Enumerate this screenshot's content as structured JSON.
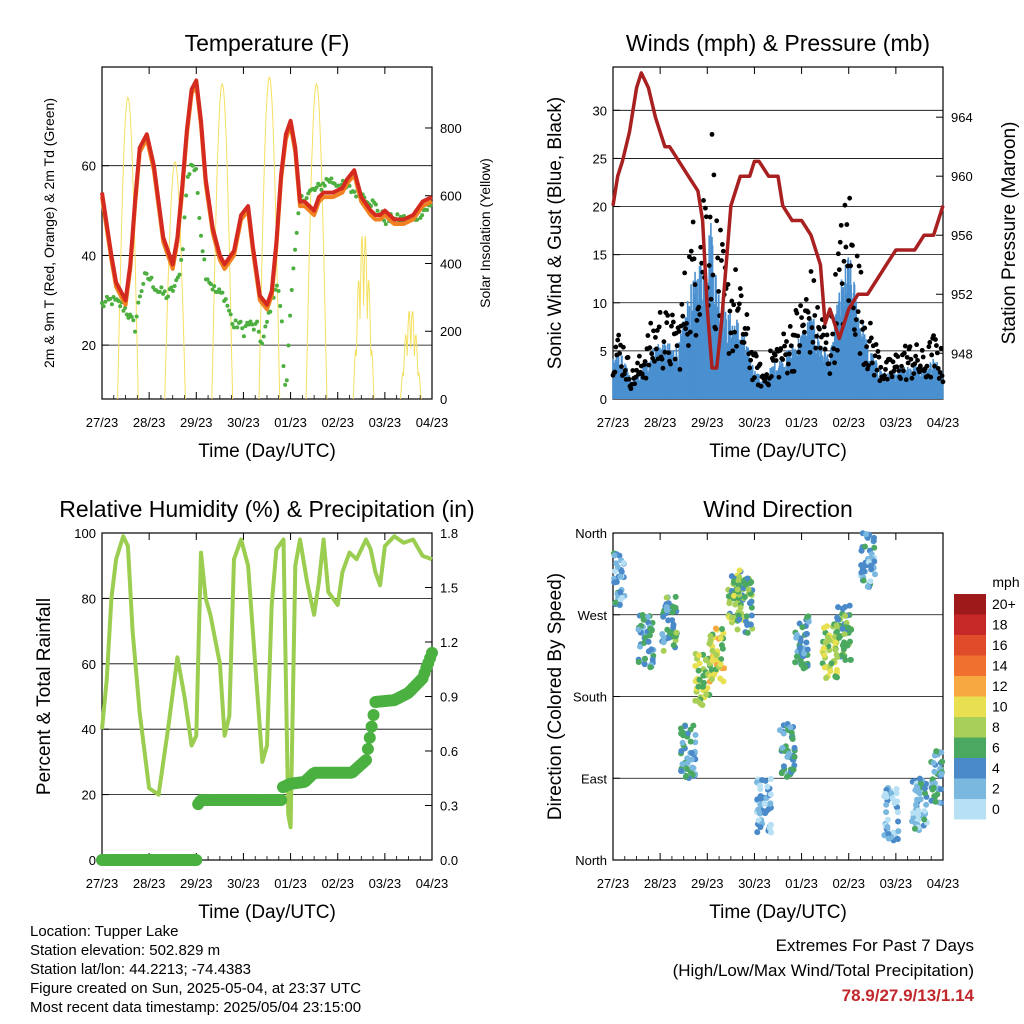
{
  "panels": {
    "temperature": {
      "title": "Temperature (F)",
      "xlabel": "Time (Day/UTC)",
      "ylabel_left": "2m & 9m T (Red, Orange) & 2m Td (Green)",
      "ylabel_right": "Solar Insolation (Yellow)"
    },
    "winds": {
      "title": "Winds (mph) & Pressure (mb)",
      "xlabel": "Time (Day/UTC)",
      "ylabel_left": "Sonic Wind & Gust (Blue, Black)",
      "ylabel_right": "Station Pressure (Maroon)"
    },
    "humidity": {
      "title": "Relative Humidity (%) & Precipitation (in)",
      "xlabel": "Time (Day/UTC)",
      "ylabel_left": "Percent & Total Rainfall"
    },
    "direction": {
      "title": "Wind Direction",
      "xlabel": "Time (Day/UTC)",
      "ylabel_left": "Direction (Colored By Speed)",
      "legend_title": "mph"
    }
  },
  "info": {
    "location": "Location: Tupper Lake",
    "elevation": "Station elevation: 502.829 m",
    "latlon": "Station lat/lon: 44.2213; -74.4383",
    "created": "Figure created on Sun, 2025-05-04, at 23:37 UTC",
    "recent": "Most recent data timestamp: 2025/05/04 23:15:00"
  },
  "extremes": {
    "line1": "Extremes For Past 7 Days",
    "line2": "(High/Low/Max Wind/Total Precipitation)",
    "values": "78.9/27.9/13/1.14"
  },
  "chart_data": [
    {
      "type": "line",
      "title": "Temperature (F)",
      "xlabel": "Time (Day/UTC)",
      "ylabel": "2m & 9m T (Red, Orange) & 2m Td (Green)",
      "y2label": "Solar Insolation (Yellow)",
      "x_ticks": [
        "27/23",
        "28/23",
        "29/23",
        "30/23",
        "01/23",
        "02/23",
        "03/23",
        "04/23"
      ],
      "y_ticks": [
        20,
        40,
        60
      ],
      "y2_ticks": [
        0,
        200,
        400,
        600,
        800
      ],
      "ylim": [
        8,
        82
      ],
      "y2lim": [
        0,
        980
      ],
      "colors": {
        "temp2m": "#d42a20",
        "temp9m": "#f08020",
        "dewpoint": "#4daf40",
        "solar": "#f5e060"
      },
      "series": [
        {
          "name": "2m T",
          "x": [
            0,
            0.1,
            0.2,
            0.3,
            0.5,
            0.6,
            0.7,
            0.8,
            0.95,
            1.1,
            1.3,
            1.5,
            1.6,
            1.7,
            1.8,
            1.9,
            2.0,
            2.1,
            2.2,
            2.35,
            2.5,
            2.6,
            2.8,
            2.95,
            3.1,
            3.2,
            3.35,
            3.5,
            3.6,
            3.7,
            3.8,
            3.9,
            4.0,
            4.1,
            4.2,
            4.3,
            4.5,
            4.6,
            4.7,
            4.9,
            5.1,
            5.2,
            5.35,
            5.5,
            5.7,
            5.8,
            5.9,
            6.0,
            6.2,
            6.4,
            6.6,
            6.8,
            7.0
          ],
          "y": [
            54,
            47,
            40,
            34,
            30,
            38,
            52,
            64,
            67,
            60,
            44,
            38,
            44,
            55,
            68,
            77,
            79,
            70,
            57,
            46,
            40,
            38,
            41,
            49,
            51,
            42,
            31,
            29,
            32,
            43,
            58,
            67,
            70,
            64,
            52,
            52,
            50,
            53,
            54,
            54,
            55,
            57,
            59,
            53,
            50,
            49,
            49,
            50,
            48,
            48,
            49,
            52,
            53
          ]
        },
        {
          "name": "2m Td",
          "x": [
            0,
            0.2,
            0.4,
            0.5,
            0.6,
            0.7,
            0.8,
            0.9,
            1.0,
            1.2,
            1.4,
            1.6,
            1.7,
            1.8,
            1.9,
            2.0,
            2.1,
            2.2,
            2.4,
            2.6,
            2.8,
            2.9,
            3.0,
            3.1,
            3.2,
            3.3,
            3.4,
            3.5,
            3.6,
            3.7,
            3.8,
            3.85,
            3.9,
            4.0,
            4.2,
            4.4,
            4.6,
            4.8,
            5.0,
            5.2,
            5.4,
            5.6,
            5.8,
            6.0,
            6.2,
            6.4,
            6.6,
            6.8,
            7.0
          ],
          "y": [
            29,
            30,
            29,
            28,
            26,
            24,
            31,
            35,
            35,
            32,
            31,
            34,
            40,
            56,
            61,
            58,
            45,
            36,
            32,
            31,
            24,
            25,
            23,
            25,
            24,
            24,
            20,
            25,
            30,
            34,
            28,
            16,
            8,
            30,
            52,
            54,
            55,
            57,
            56,
            55,
            54,
            53,
            51,
            48,
            48,
            48,
            48,
            50,
            51
          ]
        }
      ],
      "solar_peaks": [
        {
          "x": 0.55,
          "y": 890
        },
        {
          "x": 1.55,
          "y": 700
        },
        {
          "x": 2.55,
          "y": 930
        },
        {
          "x": 3.55,
          "y": 950
        },
        {
          "x": 4.55,
          "y": 930
        },
        {
          "x": 5.55,
          "y": 500
        },
        {
          "x": 6.55,
          "y": 270
        }
      ]
    },
    {
      "type": "scatter",
      "title": "Winds (mph) & Pressure (mb)",
      "xlabel": "Time (Day/UTC)",
      "ylabel": "Sonic Wind & Gust (Blue, Black)",
      "y2label": "Station Pressure (Maroon)",
      "x_ticks": [
        "27/23",
        "28/23",
        "29/23",
        "30/23",
        "01/23",
        "02/23",
        "03/23",
        "04/23"
      ],
      "y_ticks": [
        0,
        5,
        10,
        15,
        20,
        25,
        30
      ],
      "y2_ticks": [
        948,
        952,
        956,
        960,
        964
      ],
      "ylim": [
        0,
        34.5
      ],
      "y2lim": [
        944.9,
        967.4
      ],
      "colors": {
        "wind": "#4a90d0",
        "gust": "#000000",
        "pressure": "#a82020"
      },
      "gust_envelope": {
        "x": [
          0,
          0.2,
          0.4,
          0.6,
          0.8,
          1.0,
          1.2,
          1.4,
          1.6,
          1.8,
          2.0,
          2.1,
          2.2,
          2.4,
          2.6,
          2.8,
          3.0,
          3.2,
          3.4,
          3.6,
          3.8,
          4.0,
          4.2,
          4.4,
          4.6,
          4.8,
          5.0,
          5.2,
          5.4,
          5.6,
          5.8,
          6.0,
          6.2,
          6.4,
          6.6,
          6.8,
          7.0
        ],
        "y": [
          8,
          7,
          3,
          5,
          8,
          10,
          9,
          9,
          17,
          22,
          27,
          30,
          20,
          14,
          14,
          10,
          5,
          3,
          6,
          7,
          9,
          11,
          14,
          10,
          7,
          18,
          24,
          16,
          9,
          6,
          4,
          5,
          6,
          6,
          5,
          7,
          5
        ]
      },
      "series": [
        {
          "name": "Station Pressure",
          "x": [
            0,
            0.1,
            0.2,
            0.35,
            0.5,
            0.6,
            0.75,
            0.9,
            1.0,
            1.1,
            1.2,
            1.4,
            1.6,
            1.8,
            1.9,
            2.0,
            2.1,
            2.2,
            2.3,
            2.5,
            2.7,
            2.9,
            3.0,
            3.1,
            3.3,
            3.5,
            3.6,
            3.8,
            4.0,
            4.2,
            4.4,
            4.5,
            4.6,
            4.7,
            4.8,
            4.9,
            5.0,
            5.2,
            5.4,
            5.6,
            5.8,
            6.0,
            6.2,
            6.4,
            6.6,
            6.8,
            7.0
          ],
          "y": [
            958,
            960,
            961,
            963,
            966,
            967,
            966,
            964,
            963,
            962,
            962,
            961,
            960,
            959,
            957,
            951,
            947,
            947,
            950,
            958,
            960,
            960,
            961,
            961,
            960,
            960,
            958,
            957,
            957,
            956,
            954,
            950,
            951,
            950,
            949,
            950,
            951,
            952,
            952,
            953,
            954,
            955,
            955,
            955,
            956,
            956,
            958
          ]
        }
      ]
    },
    {
      "type": "line",
      "title": "Relative Humidity (%) & Precipitation (in)",
      "xlabel": "Time (Day/UTC)",
      "ylabel": "Percent & Total Rainfall",
      "x_ticks": [
        "27/23",
        "28/23",
        "29/23",
        "30/23",
        "01/23",
        "02/23",
        "03/23",
        "04/23"
      ],
      "y_ticks": [
        0,
        20,
        40,
        60,
        80,
        100
      ],
      "y2_ticks": [
        "0.0",
        "0.3",
        "0.6",
        "0.9",
        "1.2",
        "1.5",
        "1.8"
      ],
      "ylim": [
        0,
        100
      ],
      "y2lim": [
        0,
        1.8
      ],
      "colors": {
        "rh": "#9acd50",
        "precip": "#4ab040"
      },
      "series": [
        {
          "name": "RH",
          "x": [
            0,
            0.1,
            0.2,
            0.3,
            0.45,
            0.55,
            0.65,
            0.8,
            1.0,
            1.2,
            1.4,
            1.6,
            1.75,
            1.9,
            2.0,
            2.05,
            2.1,
            2.2,
            2.3,
            2.5,
            2.6,
            2.7,
            2.8,
            2.95,
            3.1,
            3.25,
            3.4,
            3.5,
            3.6,
            3.7,
            3.85,
            3.95,
            4.0,
            4.1,
            4.2,
            4.35,
            4.5,
            4.6,
            4.7,
            4.8,
            4.9,
            5.0,
            5.1,
            5.25,
            5.4,
            5.6,
            5.7,
            5.8,
            5.9,
            6.0,
            6.2,
            6.4,
            6.6,
            6.8,
            7.0
          ],
          "y": [
            40,
            55,
            80,
            92,
            99,
            96,
            70,
            45,
            22,
            20,
            40,
            62,
            50,
            35,
            38,
            66,
            94,
            80,
            75,
            60,
            38,
            44,
            92,
            98,
            90,
            60,
            30,
            35,
            78,
            95,
            98,
            14,
            10,
            90,
            98,
            85,
            75,
            85,
            98,
            82,
            80,
            78,
            88,
            94,
            92,
            98,
            95,
            88,
            84,
            96,
            99,
            97,
            98,
            93,
            92
          ]
        },
        {
          "name": "Total Precip",
          "x": [
            0,
            1.5,
            2.0,
            2.02,
            2.1,
            2.5,
            3.0,
            3.5,
            3.8,
            3.83,
            4.0,
            4.3,
            4.5,
            4.8,
            5.3,
            5.6,
            5.75,
            5.8,
            6.2,
            6.5,
            6.8,
            7.0
          ],
          "y": [
            0,
            0,
            0,
            0.3,
            0.33,
            0.33,
            0.33,
            0.33,
            0.33,
            0.4,
            0.42,
            0.43,
            0.48,
            0.48,
            0.48,
            0.55,
            0.78,
            0.87,
            0.88,
            0.92,
            1.0,
            1.14
          ]
        }
      ]
    },
    {
      "type": "scatter",
      "title": "Wind Direction",
      "xlabel": "Time (Day/UTC)",
      "ylabel": "Direction (Colored By Speed)",
      "x_ticks": [
        "27/23",
        "28/23",
        "29/23",
        "30/23",
        "01/23",
        "02/23",
        "03/23",
        "04/23"
      ],
      "y_ticks": [
        "North",
        "East",
        "South",
        "West",
        "North"
      ],
      "ylim": [
        0,
        360
      ],
      "legend": {
        "title": "mph",
        "labels": [
          "20+",
          "18",
          "16",
          "14",
          "12",
          "10",
          "8",
          "6",
          "4",
          "2",
          "0"
        ],
        "colors": [
          "#9e1a1a",
          "#c62828",
          "#e04c2a",
          "#f07030",
          "#f8a840",
          "#e8e050",
          "#a8d058",
          "#4aa860",
          "#4a8ac8",
          "#7ab8e0",
          "#b8e0f4"
        ]
      },
      "clusters": [
        {
          "x": 0.1,
          "dir": 310,
          "speed": 3
        },
        {
          "x": 0.7,
          "dir": 240,
          "speed": 4
        },
        {
          "x": 1.2,
          "dir": 260,
          "speed": 5
        },
        {
          "x": 1.6,
          "dir": 120,
          "speed": 4
        },
        {
          "x": 1.9,
          "dir": 200,
          "speed": 8
        },
        {
          "x": 2.2,
          "dir": 225,
          "speed": 9
        },
        {
          "x": 2.6,
          "dir": 290,
          "speed": 7
        },
        {
          "x": 2.8,
          "dir": 280,
          "speed": 6
        },
        {
          "x": 3.2,
          "dir": 60,
          "speed": 2
        },
        {
          "x": 3.7,
          "dir": 120,
          "speed": 4
        },
        {
          "x": 4.0,
          "dir": 240,
          "speed": 4
        },
        {
          "x": 4.6,
          "dir": 230,
          "speed": 8
        },
        {
          "x": 4.9,
          "dir": 250,
          "speed": 6
        },
        {
          "x": 5.4,
          "dir": 330,
          "speed": 3
        },
        {
          "x": 5.9,
          "dir": 50,
          "speed": 2
        },
        {
          "x": 6.5,
          "dir": 60,
          "speed": 3
        },
        {
          "x": 6.9,
          "dir": 90,
          "speed": 4
        }
      ]
    }
  ]
}
